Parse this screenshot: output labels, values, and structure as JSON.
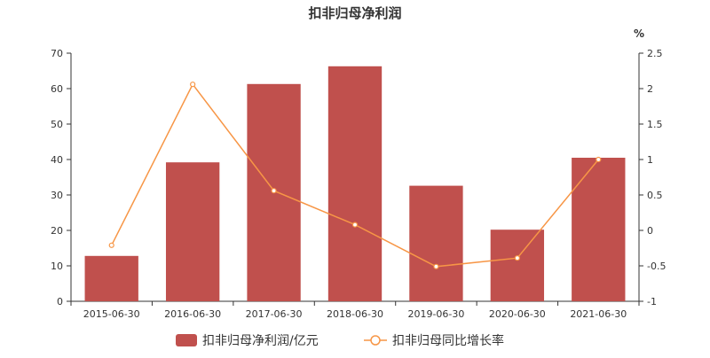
{
  "chart_data": {
    "type": "bar",
    "title": "扣非归母净利润",
    "categories": [
      "2015-06-30",
      "2016-06-30",
      "2017-06-30",
      "2018-06-30",
      "2019-06-30",
      "2020-06-30",
      "2021-06-30"
    ],
    "series": [
      {
        "name": "扣非归母净利润/亿元",
        "type": "bar",
        "axis": "left",
        "color": "#c0504d",
        "values": [
          12.8,
          39.2,
          61.3,
          66.3,
          32.6,
          20.2,
          40.5
        ]
      },
      {
        "name": "扣非归母同比增长率",
        "type": "line",
        "axis": "right",
        "color": "#f79646",
        "values": [
          -0.21,
          2.06,
          0.56,
          0.08,
          -0.51,
          -0.39,
          1.0
        ]
      }
    ],
    "y_left": {
      "ylim": [
        0,
        70
      ],
      "ticks": [
        "0",
        "10",
        "20",
        "30",
        "40",
        "50",
        "60",
        "70"
      ]
    },
    "y_right": {
      "ylim": [
        -1,
        2.5
      ],
      "ticks": [
        "-1",
        "-0.5",
        "0",
        "0.5",
        "1",
        "1.5",
        "2",
        "2.5"
      ],
      "unit": "%"
    },
    "grid": false,
    "legend_position": "bottom"
  }
}
